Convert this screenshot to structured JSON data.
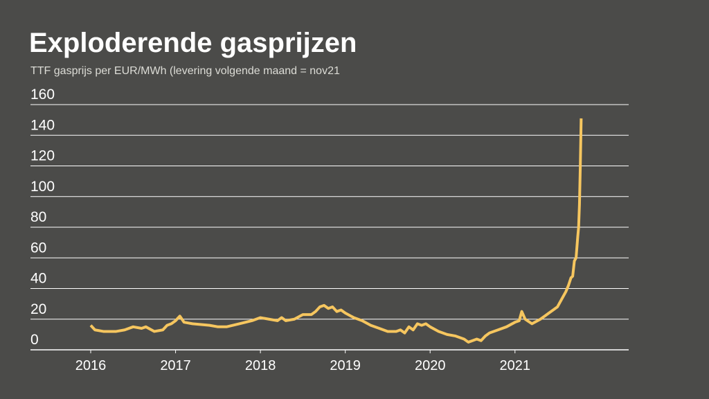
{
  "chart_data": {
    "type": "line",
    "title": "Exploderende gasprijzen",
    "subtitle": "TTF gasprijs per EUR/MWh (levering volgende maand = nov21",
    "x": [
      2016.0,
      2016.05,
      2016.15,
      2016.3,
      2016.4,
      2016.5,
      2016.6,
      2016.65,
      2016.75,
      2016.85,
      2016.9,
      2016.95,
      2017.0,
      2017.05,
      2017.1,
      2017.2,
      2017.4,
      2017.5,
      2017.6,
      2017.75,
      2017.9,
      2018.0,
      2018.1,
      2018.2,
      2018.25,
      2018.3,
      2018.4,
      2018.5,
      2018.6,
      2018.65,
      2018.7,
      2018.75,
      2018.8,
      2018.85,
      2018.9,
      2018.95,
      2019.0,
      2019.1,
      2019.2,
      2019.3,
      2019.4,
      2019.5,
      2019.6,
      2019.65,
      2019.7,
      2019.75,
      2019.8,
      2019.85,
      2019.9,
      2019.95,
      2020.0,
      2020.1,
      2020.2,
      2020.3,
      2020.4,
      2020.45,
      2020.5,
      2020.55,
      2020.6,
      2020.65,
      2020.7,
      2020.8,
      2020.9,
      2021.0,
      2021.05,
      2021.08,
      2021.12,
      2021.2,
      2021.3,
      2021.35,
      2021.4,
      2021.45,
      2021.5,
      2021.55,
      2021.6,
      2021.63,
      2021.66,
      2021.68,
      2021.7,
      2021.72,
      2021.74,
      2021.75,
      2021.76,
      2021.77,
      2021.78
    ],
    "series": [
      {
        "color": "#f6c65f",
        "values": [
          16,
          13,
          12,
          12,
          13,
          15,
          14,
          15,
          12,
          13,
          16,
          17,
          19,
          22,
          18,
          17,
          16,
          15,
          15,
          17,
          19,
          21,
          20,
          19,
          21,
          19,
          20,
          23,
          23,
          25,
          28,
          29,
          27,
          28,
          25,
          26,
          24,
          21,
          19,
          16,
          14,
          12,
          12,
          13,
          11,
          15,
          13,
          17,
          16,
          17,
          15,
          12,
          10,
          9,
          7,
          5,
          6,
          7,
          6,
          9,
          11,
          13,
          15,
          18,
          19,
          25,
          20,
          17,
          20,
          22,
          24,
          26,
          28,
          33,
          38,
          42,
          47,
          48,
          58,
          60,
          74,
          80,
          95,
          120,
          151
        ]
      }
    ],
    "xlim": [
      2015.29,
      2022.34
    ],
    "xticks": [
      2016,
      2017,
      2018,
      2019,
      2020,
      2021
    ],
    "ylim": [
      0,
      160
    ],
    "yticks": [
      0,
      20,
      40,
      60,
      80,
      100,
      120,
      140,
      160
    ],
    "grid": true
  }
}
